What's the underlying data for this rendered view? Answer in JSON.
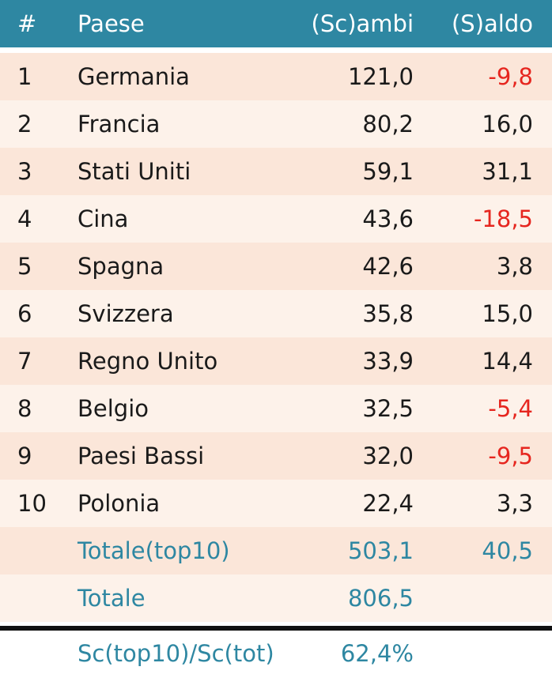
{
  "header": {
    "num": "#",
    "paese": "Paese",
    "scambi": "(Sc)ambi",
    "saldo": "(S)aldo"
  },
  "rows": [
    {
      "num": "1",
      "paese": "Germania",
      "scambi": "121,0",
      "saldo": "-9,8"
    },
    {
      "num": "2",
      "paese": "Francia",
      "scambi": "80,2",
      "saldo": "16,0"
    },
    {
      "num": "3",
      "paese": "Stati Uniti",
      "scambi": "59,1",
      "saldo": "31,1"
    },
    {
      "num": "4",
      "paese": "Cina",
      "scambi": "43,6",
      "saldo": "-18,5"
    },
    {
      "num": "5",
      "paese": "Spagna",
      "scambi": "42,6",
      "saldo": "3,8"
    },
    {
      "num": "6",
      "paese": "Svizzera",
      "scambi": "35,8",
      "saldo": "15,0"
    },
    {
      "num": "7",
      "paese": "Regno Unito",
      "scambi": "33,9",
      "saldo": "14,4"
    },
    {
      "num": "8",
      "paese": "Belgio",
      "scambi": "32,5",
      "saldo": "-5,4"
    },
    {
      "num": "9",
      "paese": "Paesi Bassi",
      "scambi": "32,0",
      "saldo": "-9,5"
    },
    {
      "num": "10",
      "paese": "Polonia",
      "scambi": "22,4",
      "saldo": "3,3"
    }
  ],
  "totale_top10": {
    "label": "Totale(top10)",
    "scambi": "503,1",
    "saldo": "40,5"
  },
  "totale": {
    "label": "Totale",
    "scambi": "806,5"
  },
  "ratio": {
    "label": "Sc(top10)/Sc(tot)",
    "value": "62,4%"
  },
  "colors": {
    "header_bg": "#2e87a2",
    "accent_text": "#2e87a2",
    "negative": "#e6261f",
    "row_dark": "#fbe6d9",
    "row_light": "#fdf2ea"
  }
}
